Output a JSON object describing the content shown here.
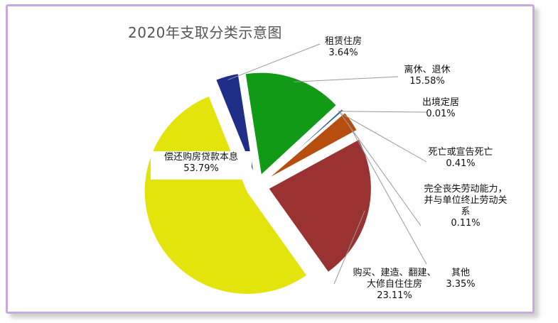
{
  "chart_data": {
    "type": "pie",
    "title": "2020年支取分类示意图",
    "slices": [
      {
        "label_lines": [
          "租赁住房"
        ],
        "value_text": "3.64%",
        "value": 3.64,
        "color": "#1f2f88"
      },
      {
        "label_lines": [
          "离休、退休"
        ],
        "value_text": "15.58%",
        "value": 15.58,
        "color": "#109a16"
      },
      {
        "label_lines": [
          "出境定居"
        ],
        "value_text": "0.01%",
        "value": 0.01,
        "color": "#3a7fc0"
      },
      {
        "label_lines": [
          "死亡或宣告死亡"
        ],
        "value_text": "0.41%",
        "value": 0.41,
        "color": "#355a9a"
      },
      {
        "label_lines": [
          "完全丧失劳动能力，",
          "并与单位终止劳动关",
          "系"
        ],
        "value_text": "0.11%",
        "value": 0.11,
        "color": "#3a9ad0"
      },
      {
        "label_lines": [
          "其他"
        ],
        "value_text": "3.35%",
        "value": 3.35,
        "color": "#b84d10"
      },
      {
        "label_lines": [
          "购买、建造、翻建、",
          "大修自住住房"
        ],
        "value_text": "23.11%",
        "value": 23.11,
        "color": "#9a3232"
      },
      {
        "label_lines": [
          "偿还购房贷款本息"
        ],
        "value_text": "53.79%",
        "value": 53.79,
        "color": "#e2e40c"
      }
    ]
  }
}
